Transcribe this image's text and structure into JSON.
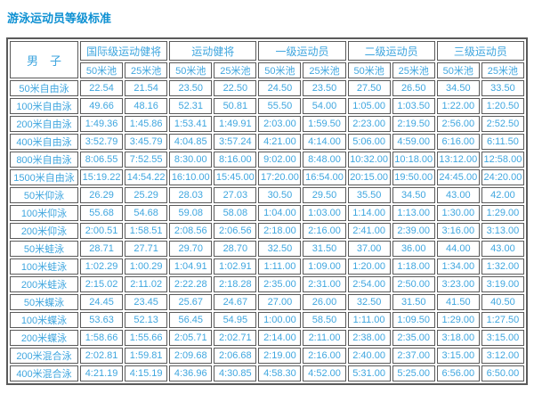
{
  "title": "游泳运动员等级标准",
  "colors": {
    "title_text": "#0d90d2",
    "cell_text": "#3fa6df",
    "border": "#5a5a5a",
    "background": "#ffffff"
  },
  "table": {
    "corner_label": "男　子",
    "groups": [
      "国际级运动健将",
      "运动健将",
      "一级运动员",
      "二级运动员",
      "三级运动员"
    ],
    "pool_headers": [
      "50米池",
      "25米池"
    ],
    "rows": [
      {
        "event": "50米自由泳",
        "times": [
          "22.54",
          "21.54",
          "23.50",
          "22.50",
          "24.50",
          "23.50",
          "27.50",
          "26.50",
          "34.50",
          "33.50"
        ]
      },
      {
        "event": "100米自由泳",
        "times": [
          "49.66",
          "48.16",
          "52.31",
          "50.81",
          "55.50",
          "54.00",
          "1:05.00",
          "1:03.50",
          "1:22.00",
          "1:20.50"
        ]
      },
      {
        "event": "200米自由泳",
        "times": [
          "1:49.36",
          "1:45.86",
          "1:53.41",
          "1:49.91",
          "2:03.00",
          "1:59.50",
          "2:23.00",
          "2:19.50",
          "2:56.00",
          "2:52.50"
        ]
      },
      {
        "event": "400米自由泳",
        "times": [
          "3:52.79",
          "3:45.79",
          "4:04.85",
          "3:57.24",
          "4:21.00",
          "4:14.00",
          "5:06.00",
          "4:59.00",
          "6:16.00",
          "6:11.50"
        ]
      },
      {
        "event": "800米自由泳",
        "times": [
          "8:06.55",
          "7:52.55",
          "8:30.00",
          "8:16.00",
          "9:02.00",
          "8:48.00",
          "10:32.00",
          "10:18.00",
          "13:12.00",
          "12:58.00"
        ]
      },
      {
        "event": "1500米自由泳",
        "times": [
          "15:19.22",
          "14:54.22",
          "16:10.00",
          "15:45.00",
          "17:20.00",
          "16:54.00",
          "20:15.00",
          "19:50.00",
          "24:45.00",
          "24:20.00"
        ]
      },
      {
        "event": "50米仰泳",
        "times": [
          "26.29",
          "25.29",
          "28.03",
          "27.03",
          "30.50",
          "29.50",
          "35.50",
          "34.50",
          "43.00",
          "42.00"
        ]
      },
      {
        "event": "100米仰泳",
        "times": [
          "55.68",
          "54.68",
          "59.08",
          "58.08",
          "1:04.00",
          "1:03.00",
          "1:14.00",
          "1:13.00",
          "1:30.00",
          "1:29.00"
        ]
      },
      {
        "event": "200米仰泳",
        "times": [
          "2:00.51",
          "1:58.51",
          "2:08.56",
          "2:06.56",
          "2:18.00",
          "2:16.00",
          "2:41.00",
          "2:39.00",
          "3:16.00",
          "3:13.00"
        ]
      },
      {
        "event": "50米蛙泳",
        "times": [
          "28.71",
          "27.71",
          "29.70",
          "28.70",
          "32.50",
          "31.50",
          "37.00",
          "36.00",
          "44.00",
          "43.00"
        ]
      },
      {
        "event": "100米蛙泳",
        "times": [
          "1:02.29",
          "1:00.29",
          "1:04.91",
          "1:02.91",
          "1:11.00",
          "1:09.00",
          "1:20.00",
          "1:18.00",
          "1:34.00",
          "1:32.00"
        ]
      },
      {
        "event": "200米蛙泳",
        "times": [
          "2:15.02",
          "2:11.02",
          "2:22.28",
          "2:18.28",
          "2:35.00",
          "2:31.00",
          "2:54.00",
          "2:50.00",
          "3:23.00",
          "3:19.00"
        ]
      },
      {
        "event": "50米蝶泳",
        "times": [
          "24.45",
          "23.45",
          "25.67",
          "24.67",
          "27.00",
          "26.00",
          "32.50",
          "31.50",
          "41.50",
          "40.50"
        ]
      },
      {
        "event": "100米蝶泳",
        "times": [
          "53.63",
          "52.13",
          "56.45",
          "54.95",
          "1:00.00",
          "58.50",
          "1:11.00",
          "1:09.50",
          "1:29.00",
          "1:27.50"
        ]
      },
      {
        "event": "200米蝶泳",
        "times": [
          "1:58.66",
          "1:55.66",
          "2:05.71",
          "2:02.71",
          "2:14.00",
          "2:11.00",
          "2:38.00",
          "2:35.00",
          "3:18.00",
          "3:15.00"
        ]
      },
      {
        "event": "200米混合泳",
        "times": [
          "2:02.81",
          "1:59.81",
          "2:09.68",
          "2:06.68",
          "2:19.00",
          "2:16.00",
          "2:40.00",
          "2:37.00",
          "3:15.00",
          "3:12.00"
        ]
      },
      {
        "event": "400米混合泳",
        "times": [
          "4:21.19",
          "4:15.19",
          "4:36.96",
          "4:30.85",
          "4:58.30",
          "4:52.00",
          "5:31.00",
          "5:25.00",
          "6:56.00",
          "6:50.00"
        ]
      }
    ]
  }
}
